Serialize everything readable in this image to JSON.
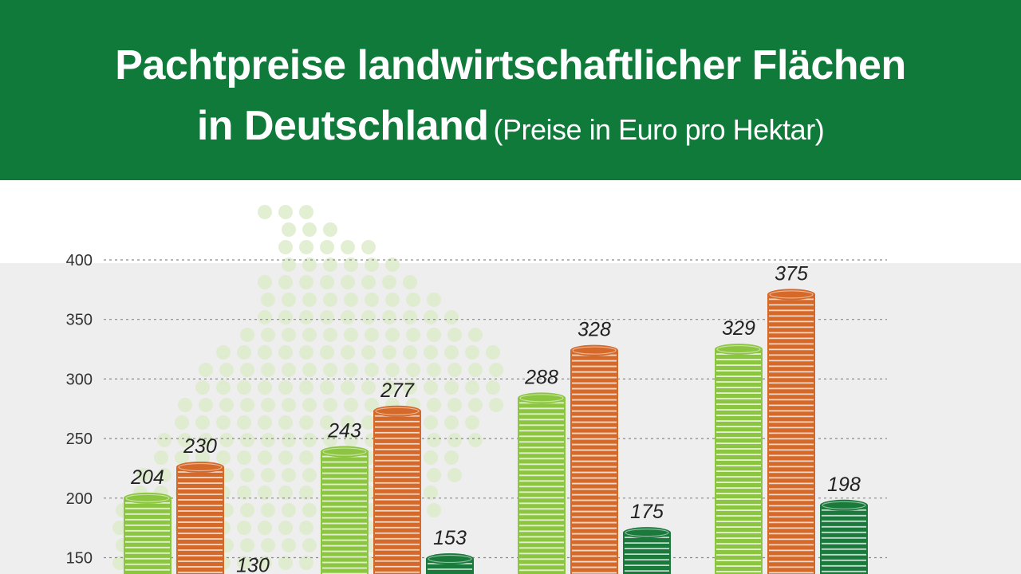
{
  "header": {
    "title_line1": "Pachtpreise landwirtschaftlicher Flächen",
    "title_line2": "in Deutschland",
    "subtitle": "(Preise in Euro pro Hektar)"
  },
  "colors": {
    "header_bg": "#0f7a3a",
    "light_green": "#8cc540",
    "orange": "#d4692a",
    "dark_green": "#1a7a3c",
    "plot_bg": "#eeeeef",
    "map_dots": "#dcebc8"
  },
  "chart_data": {
    "type": "bar",
    "title": "Pachtpreise landwirtschaftlicher Flächen in Deutschland",
    "subtitle": "(Preise in Euro pro Hektar)",
    "ylim": [
      0,
      400
    ],
    "yticks": [
      150,
      200,
      250,
      300,
      350,
      400
    ],
    "grid": true,
    "groups": [
      {
        "values": [
          204,
          230,
          130
        ]
      },
      {
        "values": [
          243,
          277,
          153
        ]
      },
      {
        "values": [
          288,
          328,
          175
        ]
      },
      {
        "values": [
          329,
          375,
          198
        ]
      }
    ],
    "value_labels": [
      [
        "204",
        "230",
        "130"
      ],
      [
        "243",
        "277",
        "153"
      ],
      [
        "288",
        "328",
        "175"
      ],
      [
        "329",
        "375",
        "198"
      ]
    ]
  }
}
